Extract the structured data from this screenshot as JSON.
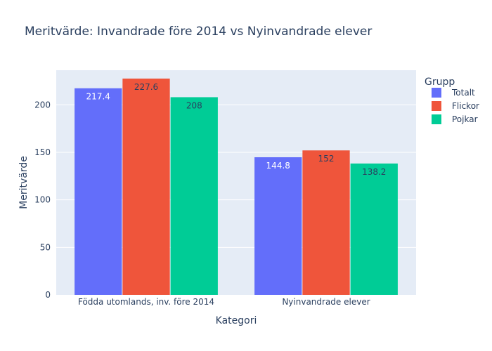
{
  "chart_data": {
    "type": "bar",
    "title": "Meritvärde: Invandrade före 2014 vs Nyinvandrade elever",
    "xlabel": "Kategori",
    "ylabel": "Meritvärde",
    "categories": [
      "Födda utomlands, inv. före 2014",
      "Nyinvandrade elever"
    ],
    "series": [
      {
        "name": "Totalt",
        "values": [
          217.4,
          144.8
        ],
        "color": "#636efa",
        "label_color": "#ffffff"
      },
      {
        "name": "Flickor",
        "values": [
          227.6,
          152
        ],
        "color": "#ef553b",
        "label_color": "#2a3f5f"
      },
      {
        "name": "Pojkar",
        "values": [
          208,
          138.2
        ],
        "color": "#00cc96",
        "label_color": "#2a3f5f"
      }
    ],
    "ylim": [
      0,
      236.4
    ],
    "yticks": [
      0,
      50,
      100,
      150,
      200
    ],
    "legend_title": "Grupp",
    "legend_position": "right",
    "grid": true,
    "plot_background": "#e5ecf6"
  }
}
